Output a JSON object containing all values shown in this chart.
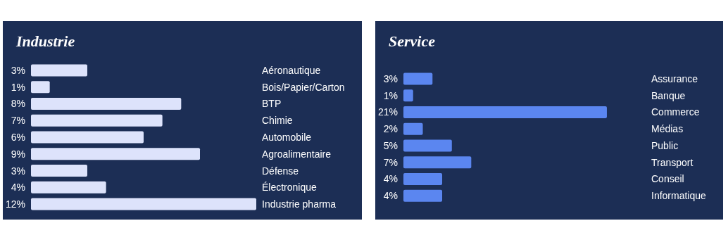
{
  "chart_data": [
    {
      "type": "bar",
      "title": "Industrie",
      "orientation": "horizontal",
      "tick_labels": "y",
      "categories": [
        "Aéronautique",
        "Bois/Papier/Carton",
        "BTP",
        "Chimie",
        "Automobile",
        "Agroalimentaire",
        "Défense",
        "Électronique",
        "Industrie pharma"
      ],
      "values": [
        3,
        1,
        8,
        7,
        6,
        9,
        3,
        4,
        12
      ],
      "color": "#dde3fb",
      "value_labels": [
        "3%",
        "1%",
        "8%",
        "7%",
        "6%",
        "9%",
        "3%",
        "4%",
        "12%"
      ]
    },
    {
      "type": "bar",
      "title": "Service",
      "orientation": "horizontal",
      "tick_labels": "y",
      "categories": [
        "Assurance",
        "Banque",
        "Commerce",
        "Médias",
        "Public",
        "Transport",
        "Conseil",
        "Informatique"
      ],
      "values": [
        3,
        1,
        21,
        2,
        5,
        7,
        4,
        4
      ],
      "color": "#5b86f0",
      "value_labels": [
        "3%",
        "1%",
        "21%",
        "2%",
        "5%",
        "7%",
        "4%",
        "4%"
      ]
    }
  ]
}
